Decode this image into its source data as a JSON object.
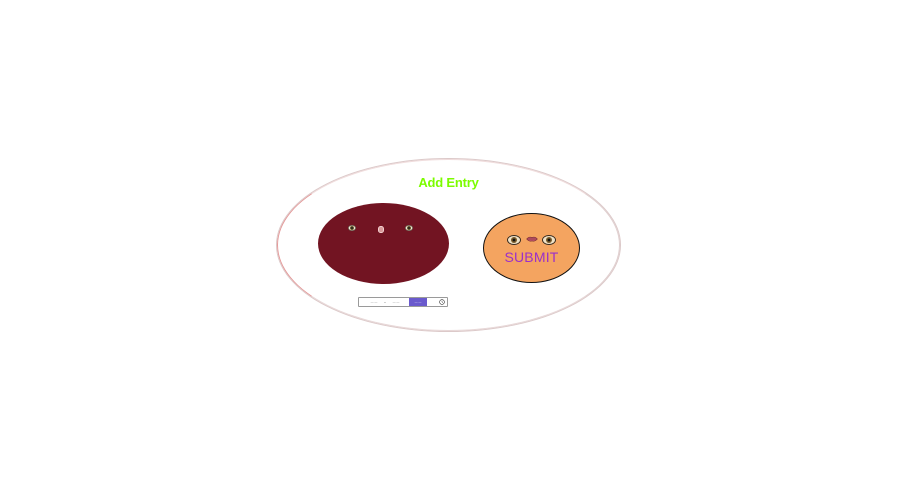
{
  "form": {
    "title": "Add Entry",
    "title_color": "#7cfc00",
    "submit_label": "SUBMIT",
    "submit_label_color": "#9b30c9",
    "submit_bg_color": "#f4a460",
    "input_face_color": "#721422"
  },
  "range_picker": {
    "start_value": "— —",
    "separator": "–",
    "end_value": "— —",
    "active_value": "— —",
    "clock_icon": "clock-icon",
    "accent_color": "#6a5acd"
  }
}
